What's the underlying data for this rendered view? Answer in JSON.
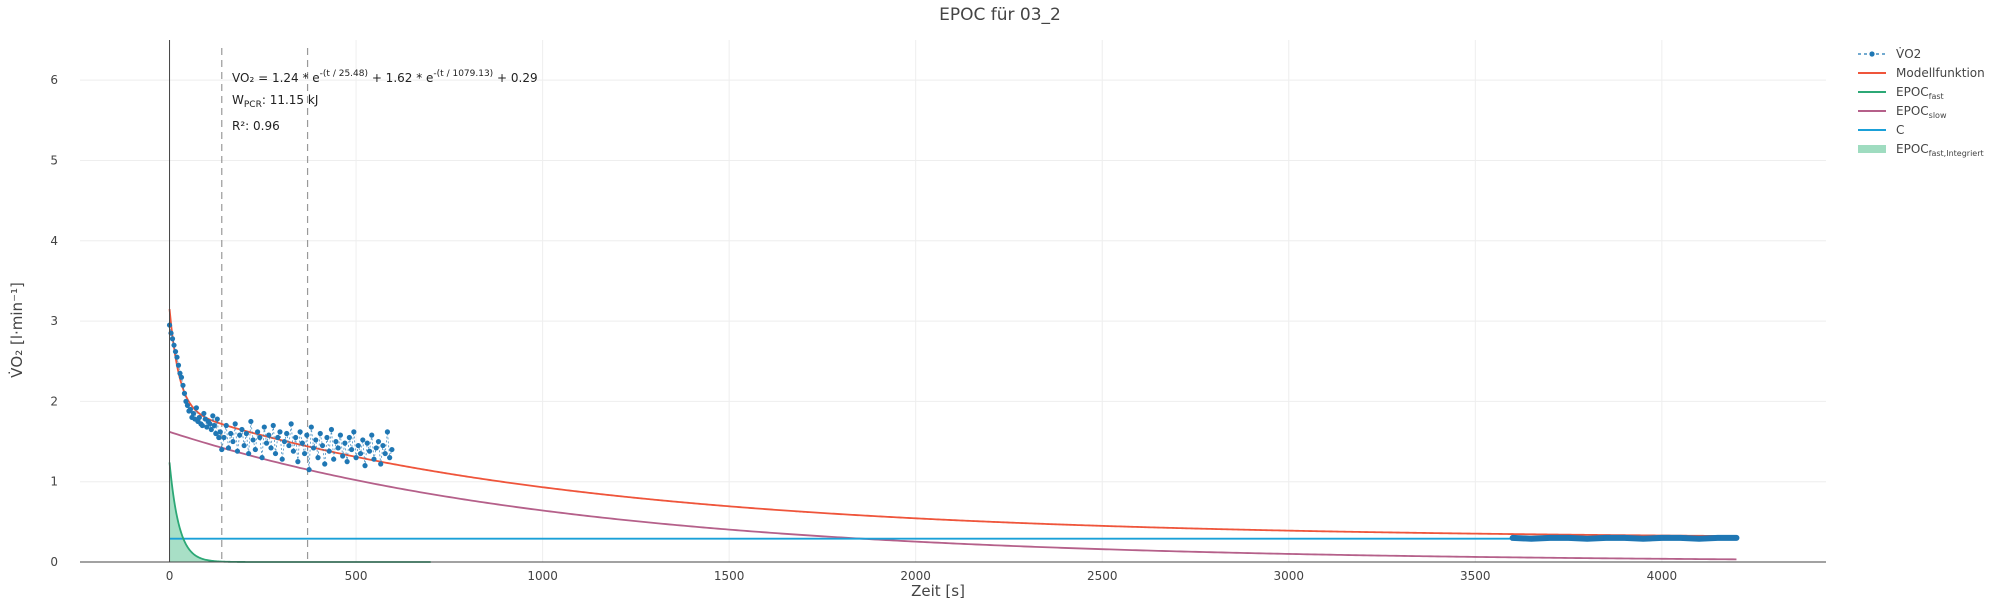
{
  "chart_data": {
    "type": "scatter",
    "title": "EPOC für 03_2",
    "xlabel": "Zeit [s]",
    "ylabel": "V̇O₂ [l·min⁻¹]",
    "xlim": [
      -240,
      4440
    ],
    "ylim": [
      0,
      6.5
    ],
    "x_ticks": [
      0,
      500,
      1000,
      1500,
      2000,
      2500,
      3000,
      3500,
      4000
    ],
    "y_ticks": [
      0,
      1,
      2,
      3,
      4,
      5,
      6
    ],
    "grid": true,
    "legend_position": "top-right",
    "colors": {
      "vo2": "#1f77b4",
      "model": "#ef553b",
      "fast": "#2ca876",
      "slow": "#b5608a",
      "c": "#1aa0d8",
      "fill": "#9fdcc0"
    },
    "model": {
      "a_fast": 1.24,
      "tau_fast": 25.48,
      "a_slow": 1.62,
      "tau_slow": 1079.13,
      "c": 0.29,
      "x_start": 0,
      "x_end": 4200
    },
    "vlines": [
      140,
      370
    ],
    "series": [
      {
        "name": "V̇O2",
        "x": [
          0,
          4,
          8,
          12,
          16,
          20,
          24,
          28,
          32,
          36,
          40,
          44,
          48,
          52,
          56,
          60,
          64,
          68,
          72,
          76,
          80,
          84,
          88,
          92,
          96,
          100,
          104,
          108,
          112,
          116,
          120,
          124,
          128,
          132,
          136,
          140,
          146,
          152,
          158,
          164,
          170,
          176,
          182,
          188,
          194,
          200,
          206,
          212,
          218,
          224,
          230,
          236,
          242,
          248,
          254,
          260,
          266,
          272,
          278,
          284,
          290,
          296,
          302,
          308,
          314,
          320,
          326,
          332,
          338,
          344,
          350,
          356,
          362,
          368,
          374,
          380,
          386,
          392,
          398,
          404,
          410,
          416,
          422,
          428,
          434,
          440,
          446,
          452,
          458,
          464,
          470,
          476,
          482,
          488,
          494,
          500,
          506,
          512,
          518,
          524,
          530,
          536,
          542,
          548,
          554,
          560,
          566,
          572,
          578,
          584,
          590,
          596,
          3600,
          3650,
          3700,
          3750,
          3800,
          3850,
          3900,
          3950,
          4000,
          4050,
          4100,
          4150,
          4200
        ],
        "values": [
          2.95,
          2.85,
          2.78,
          2.7,
          2.62,
          2.55,
          2.45,
          2.35,
          2.3,
          2.2,
          2.1,
          2.0,
          1.95,
          1.88,
          1.9,
          1.8,
          1.85,
          1.78,
          1.92,
          1.75,
          1.8,
          1.72,
          1.7,
          1.85,
          1.78,
          1.68,
          1.75,
          1.72,
          1.65,
          1.82,
          1.7,
          1.6,
          1.78,
          1.55,
          1.62,
          1.4,
          1.55,
          1.7,
          1.42,
          1.6,
          1.5,
          1.72,
          1.38,
          1.58,
          1.65,
          1.45,
          1.6,
          1.35,
          1.75,
          1.52,
          1.4,
          1.62,
          1.55,
          1.3,
          1.68,
          1.48,
          1.58,
          1.42,
          1.7,
          1.35,
          1.55,
          1.62,
          1.28,
          1.5,
          1.6,
          1.45,
          1.72,
          1.38,
          1.55,
          1.25,
          1.62,
          1.48,
          1.35,
          1.58,
          1.15,
          1.68,
          1.42,
          1.52,
          1.3,
          1.6,
          1.45,
          1.22,
          1.55,
          1.38,
          1.65,
          1.28,
          1.5,
          1.42,
          1.58,
          1.32,
          1.48,
          1.25,
          1.55,
          1.4,
          1.62,
          1.3,
          1.45,
          1.35,
          1.52,
          1.2,
          1.48,
          1.38,
          1.58,
          1.28,
          1.42,
          1.5,
          1.22,
          1.45,
          1.35,
          1.62,
          1.3,
          1.4,
          0.3,
          0.29,
          0.3,
          0.3,
          0.29,
          0.3,
          0.3,
          0.29,
          0.3,
          0.3,
          0.29,
          0.3,
          0.3
        ]
      },
      {
        "name": "Modellfunktion"
      },
      {
        "name": "EPOC",
        "subscript": "fast"
      },
      {
        "name": "EPOC",
        "subscript": "slow"
      },
      {
        "name": "C"
      },
      {
        "name": "EPOC",
        "subscript": "fast,Integriert"
      }
    ],
    "annotations": {
      "formula_prefix": "VO₂ = 1.24 * e",
      "formula_exp1": "-(t / 25.48)",
      "formula_mid": " + 1.62 * e",
      "formula_exp2": "-(t / 1079.13)",
      "formula_suffix": " + 0.29",
      "work_label": "W",
      "work_sub": "PCR",
      "work_value": ": 11.15 kJ",
      "r2": "R²: 0.96"
    }
  }
}
